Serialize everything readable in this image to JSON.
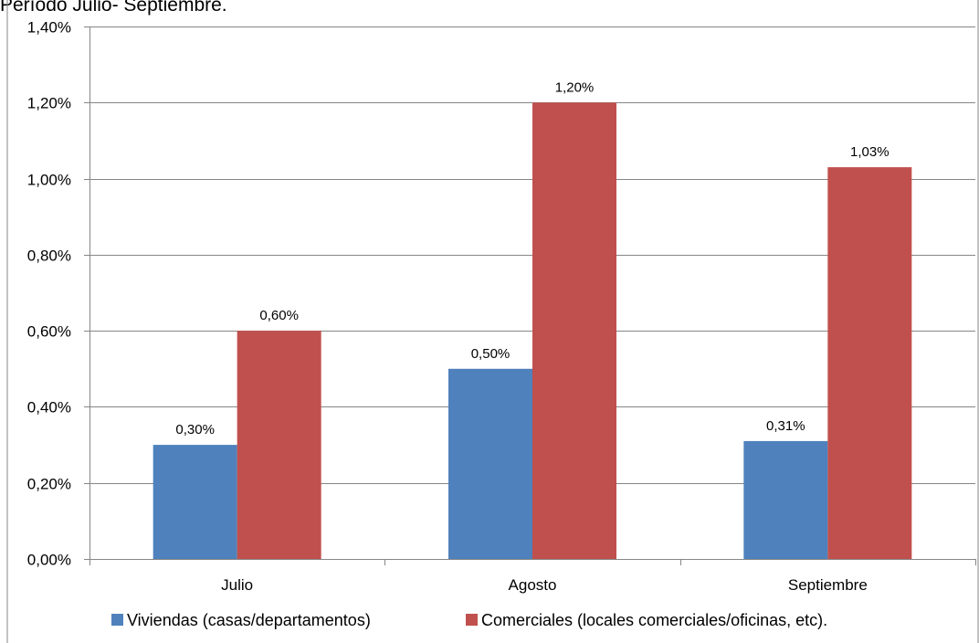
{
  "chart_data": {
    "type": "bar",
    "title": "Período Julio- Septiembre.",
    "categories": [
      "Julio",
      "Agosto",
      "Septiembre"
    ],
    "series": [
      {
        "name": "Viviendas (casas/departamentos)",
        "values": [
          0.3,
          0.5,
          0.31
        ],
        "labels": [
          "0,30%",
          "0,50%",
          "0,31%"
        ],
        "color": "#4F81BD"
      },
      {
        "name": "Comerciales (locales comerciales/oficinas, etc).",
        "values": [
          0.6,
          1.2,
          1.03
        ],
        "labels": [
          "0,60%",
          "1,20%",
          "1,03%"
        ],
        "color": "#C0504D"
      }
    ],
    "ylim": [
      0,
      1.4
    ],
    "yticks": [
      0,
      0.2,
      0.4,
      0.6,
      0.8,
      1.0,
      1.2,
      1.4
    ],
    "ytick_labels": [
      "0,00%",
      "0,20%",
      "0,40%",
      "0,60%",
      "0,80%",
      "1,00%",
      "1,20%",
      "1,40%"
    ],
    "xlabel": "",
    "ylabel": "",
    "grid": true,
    "legend_position": "bottom",
    "gridline_color": "#868686",
    "axis_color": "#868686"
  }
}
